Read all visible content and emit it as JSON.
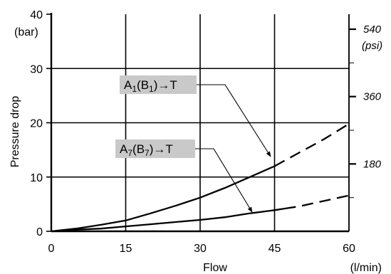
{
  "chart_data": {
    "type": "line",
    "xlabel": "Flow",
    "xunit": "(l/min)",
    "ylabel": "Pressure drop",
    "yunit": "(bar)",
    "y2unit": "(psi)",
    "xlim": [
      0,
      60
    ],
    "ylim": [
      0,
      40
    ],
    "x_ticks": [
      "0",
      "15",
      "30",
      "45",
      "60"
    ],
    "y_ticks": [
      "0",
      "10",
      "20",
      "30",
      "40"
    ],
    "y2_ticks": [
      "180",
      "360",
      "540"
    ],
    "grid": true,
    "series": [
      {
        "name": "A1(B1)→T",
        "label_main": "A",
        "label_sub1": "1",
        "label_mid": "(B",
        "label_sub2": "1",
        "label_end": ")→T",
        "x": [
          0,
          5,
          10,
          15,
          20,
          25,
          30,
          35,
          40,
          45,
          50,
          55,
          60
        ],
        "y": [
          0,
          0.5,
          1.2,
          2.0,
          3.3,
          4.7,
          6.2,
          8.0,
          10.0,
          12.0,
          14.5,
          17.0,
          19.8
        ],
        "solid_until_x": 45
      },
      {
        "name": "A7(B7)→T",
        "label_main": "A",
        "label_sub1": "7",
        "label_mid": "(B",
        "label_sub2": "7",
        "label_end": ")→T",
        "x": [
          0,
          5,
          10,
          15,
          20,
          25,
          30,
          35,
          40,
          45,
          50,
          55,
          60
        ],
        "y": [
          0,
          0.3,
          0.5,
          0.9,
          1.3,
          1.7,
          2.1,
          2.6,
          3.3,
          3.9,
          4.6,
          5.6,
          6.6
        ],
        "solid_until_x": 47
      }
    ]
  }
}
